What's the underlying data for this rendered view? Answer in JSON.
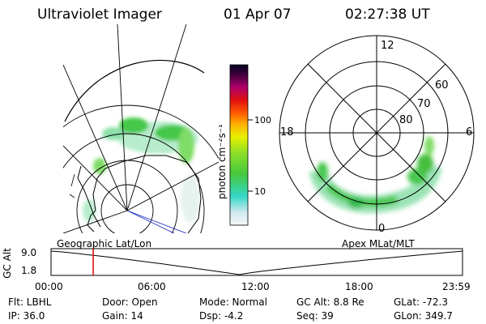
{
  "header": {
    "instrument": "Ultraviolet Imager",
    "date": "01 Apr 07",
    "time": "02:27:38 UT"
  },
  "colorbar": {
    "label": "photon cm⁻²s⁻¹",
    "ticks": [
      "100",
      "10"
    ]
  },
  "polar_plot": {
    "mlt_labels": {
      "top": "12",
      "left": "18",
      "right": "6",
      "bottom": "0"
    },
    "lat_labels": [
      "60",
      "70",
      "80"
    ]
  },
  "maps": {
    "left_label": "Geographic Lat/Lon",
    "right_label": "Apex MLat/MLT"
  },
  "altitude_plot": {
    "axis_label": "GC Alt",
    "y_ticks": [
      "9.0",
      "1.8"
    ],
    "x_ticks": [
      "00:00",
      "06:00",
      "12:00",
      "18:00",
      "23:59"
    ],
    "current_time_hours": 2.46
  },
  "info": {
    "flt": "Flt: LBHL",
    "ip": "IP: 36.0",
    "door": "Door: Open",
    "gain": "Gain: 14",
    "mode": "Mode: Normal",
    "dsp": "Dsp:    -4.2",
    "gc_alt": "GC Alt: 8.8 Re",
    "seq": "Seq: 39",
    "glat": "GLat: -72.3",
    "glon": "GLon: 349.7"
  },
  "colors": {
    "marker": "#e00000",
    "line": "#000000"
  }
}
